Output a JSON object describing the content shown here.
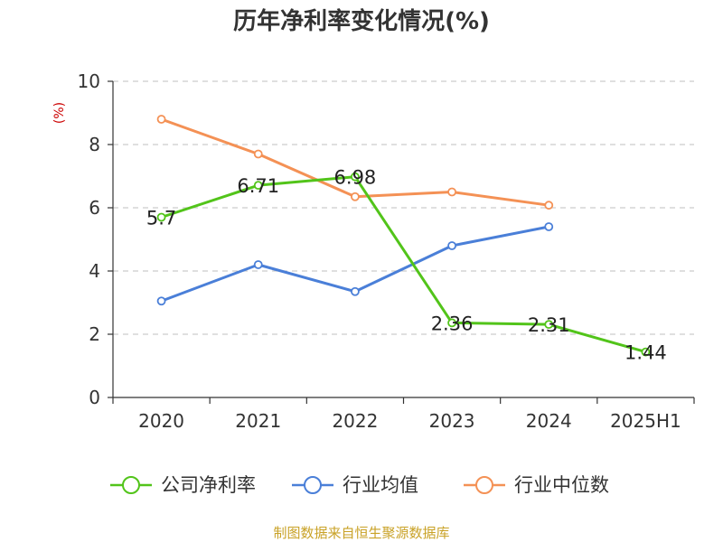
{
  "chart_data": {
    "type": "line",
    "title": "历年净利率变化情况(%)",
    "ylabel": "(%)",
    "xlabel": "",
    "categories": [
      "2020",
      "2021",
      "2022",
      "2023",
      "2024",
      "2025H1"
    ],
    "ylim": [
      0,
      10
    ],
    "yticks": [
      0,
      2,
      4,
      6,
      8,
      10
    ],
    "grid": true,
    "legend_position": "bottom",
    "series": [
      {
        "name": "公司净利率",
        "color": "#52c41a",
        "values": [
          5.7,
          6.71,
          6.98,
          2.36,
          2.31,
          1.44
        ],
        "labels": [
          "5.7",
          "6.71",
          "6.98",
          "2.36",
          "2.31",
          "1.44"
        ],
        "show_labels": true
      },
      {
        "name": "行业均值",
        "color": "#4a7fd8",
        "values": [
          3.05,
          4.2,
          3.35,
          4.8,
          5.4,
          null
        ],
        "show_labels": false
      },
      {
        "name": "行业中位数",
        "color": "#f49155",
        "values": [
          8.8,
          7.7,
          6.35,
          6.5,
          6.08,
          null
        ],
        "show_labels": false
      }
    ]
  },
  "footer": {
    "source": "制图数据来自恒生聚源数据库"
  }
}
